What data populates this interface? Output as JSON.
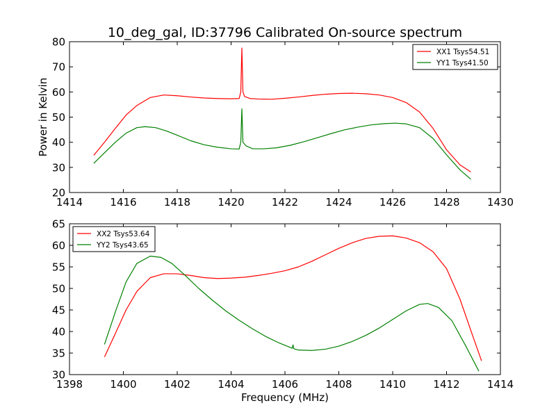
{
  "title": "10_deg_gal, ID:37796 Calibrated On-source spectrum",
  "chart_data": [
    {
      "type": "line",
      "title": "10_deg_gal, ID:37796 Calibrated On-source spectrum",
      "xlabel": "",
      "ylabel": "Power in Kelvin",
      "xlim": [
        1414,
        1430
      ],
      "ylim": [
        20,
        80
      ],
      "xticks": [
        1414,
        1416,
        1418,
        1420,
        1422,
        1424,
        1426,
        1428,
        1430
      ],
      "yticks": [
        20,
        30,
        40,
        50,
        60,
        70,
        80
      ],
      "legend_position": "top-right",
      "grid": false,
      "series": [
        {
          "name": "XX1 Tsys54.51",
          "color": "#ff0000",
          "points": [
            [
              1414.9,
              34.8
            ],
            [
              1415.3,
              40.0
            ],
            [
              1415.7,
              45.5
            ],
            [
              1416.1,
              50.8
            ],
            [
              1416.5,
              54.6
            ],
            [
              1417.0,
              57.8
            ],
            [
              1417.5,
              58.8
            ],
            [
              1418.0,
              58.5
            ],
            [
              1418.5,
              58.0
            ],
            [
              1419.0,
              57.6
            ],
            [
              1419.5,
              57.4
            ],
            [
              1420.0,
              57.3
            ],
            [
              1420.3,
              57.4
            ],
            [
              1420.36,
              60.0
            ],
            [
              1420.4,
              77.5
            ],
            [
              1420.44,
              60.0
            ],
            [
              1420.5,
              58.2
            ],
            [
              1420.7,
              57.4
            ],
            [
              1421.0,
              57.2
            ],
            [
              1421.5,
              57.1
            ],
            [
              1422.0,
              57.5
            ],
            [
              1422.5,
              58.0
            ],
            [
              1423.0,
              58.6
            ],
            [
              1423.5,
              59.1
            ],
            [
              1424.0,
              59.4
            ],
            [
              1424.5,
              59.5
            ],
            [
              1425.0,
              59.3
            ],
            [
              1425.5,
              58.8
            ],
            [
              1426.0,
              57.8
            ],
            [
              1426.5,
              55.8
            ],
            [
              1427.0,
              52.0
            ],
            [
              1427.5,
              45.5
            ],
            [
              1428.0,
              37.0
            ],
            [
              1428.5,
              31.0
            ],
            [
              1428.9,
              28.2
            ]
          ]
        },
        {
          "name": "YY1 Tsys41.50",
          "color": "#008000",
          "points": [
            [
              1414.9,
              31.6
            ],
            [
              1415.3,
              35.8
            ],
            [
              1415.7,
              40.0
            ],
            [
              1416.1,
              43.6
            ],
            [
              1416.5,
              45.8
            ],
            [
              1416.8,
              46.2
            ],
            [
              1417.2,
              45.8
            ],
            [
              1417.6,
              44.5
            ],
            [
              1418.0,
              42.8
            ],
            [
              1418.5,
              40.6
            ],
            [
              1419.0,
              39.0
            ],
            [
              1419.5,
              38.0
            ],
            [
              1420.0,
              37.4
            ],
            [
              1420.3,
              37.3
            ],
            [
              1420.36,
              40.0
            ],
            [
              1420.4,
              53.3
            ],
            [
              1420.44,
              40.0
            ],
            [
              1420.55,
              38.6
            ],
            [
              1420.8,
              37.4
            ],
            [
              1421.2,
              37.4
            ],
            [
              1421.7,
              37.8
            ],
            [
              1422.2,
              38.8
            ],
            [
              1422.7,
              40.2
            ],
            [
              1423.2,
              41.8
            ],
            [
              1423.7,
              43.4
            ],
            [
              1424.2,
              44.9
            ],
            [
              1424.7,
              46.0
            ],
            [
              1425.2,
              46.9
            ],
            [
              1425.7,
              47.4
            ],
            [
              1426.1,
              47.6
            ],
            [
              1426.5,
              47.3
            ],
            [
              1427.0,
              45.8
            ],
            [
              1427.5,
              41.5
            ],
            [
              1428.0,
              35.0
            ],
            [
              1428.5,
              29.0
            ],
            [
              1428.9,
              25.3
            ]
          ]
        }
      ]
    },
    {
      "type": "line",
      "title": "",
      "xlabel": "Frequency (MHz)",
      "ylabel": "",
      "xlim": [
        1398,
        1414
      ],
      "ylim": [
        30,
        65
      ],
      "xticks": [
        1398,
        1400,
        1402,
        1404,
        1406,
        1408,
        1410,
        1412,
        1414
      ],
      "yticks": [
        30,
        35,
        40,
        45,
        50,
        55,
        60,
        65
      ],
      "legend_position": "top-left",
      "grid": false,
      "series": [
        {
          "name": "XX2 Tsys53.64",
          "color": "#ff0000",
          "points": [
            [
              1399.3,
              34.1
            ],
            [
              1399.7,
              39.5
            ],
            [
              1400.1,
              45.0
            ],
            [
              1400.5,
              49.3
            ],
            [
              1401.0,
              52.5
            ],
            [
              1401.5,
              53.4
            ],
            [
              1402.0,
              53.4
            ],
            [
              1402.5,
              53.0
            ],
            [
              1403.0,
              52.5
            ],
            [
              1403.5,
              52.3
            ],
            [
              1404.0,
              52.4
            ],
            [
              1404.5,
              52.6
            ],
            [
              1405.0,
              53.0
            ],
            [
              1405.5,
              53.5
            ],
            [
              1406.0,
              54.1
            ],
            [
              1406.5,
              55.0
            ],
            [
              1407.0,
              56.3
            ],
            [
              1407.5,
              57.8
            ],
            [
              1408.0,
              59.3
            ],
            [
              1408.5,
              60.6
            ],
            [
              1409.0,
              61.6
            ],
            [
              1409.5,
              62.1
            ],
            [
              1410.0,
              62.2
            ],
            [
              1410.5,
              61.7
            ],
            [
              1411.0,
              60.6
            ],
            [
              1411.5,
              58.5
            ],
            [
              1412.0,
              54.6
            ],
            [
              1412.5,
              47.5
            ],
            [
              1413.0,
              38.5
            ],
            [
              1413.3,
              33.2
            ]
          ]
        },
        {
          "name": "YY2 Tsys43.65",
          "color": "#008000",
          "points": [
            [
              1399.3,
              37.0
            ],
            [
              1399.7,
              44.5
            ],
            [
              1400.1,
              51.5
            ],
            [
              1400.5,
              55.8
            ],
            [
              1401.0,
              57.5
            ],
            [
              1401.4,
              57.2
            ],
            [
              1401.8,
              55.8
            ],
            [
              1402.3,
              53.0
            ],
            [
              1402.8,
              50.0
            ],
            [
              1403.3,
              47.3
            ],
            [
              1403.8,
              44.8
            ],
            [
              1404.3,
              42.6
            ],
            [
              1404.8,
              40.6
            ],
            [
              1405.3,
              38.8
            ],
            [
              1405.8,
              37.3
            ],
            [
              1406.2,
              36.3
            ],
            [
              1406.27,
              36.1
            ],
            [
              1406.3,
              36.9
            ],
            [
              1406.33,
              36.0
            ],
            [
              1406.5,
              35.7
            ],
            [
              1407.0,
              35.6
            ],
            [
              1407.5,
              35.9
            ],
            [
              1408.0,
              36.6
            ],
            [
              1408.5,
              37.7
            ],
            [
              1409.0,
              39.1
            ],
            [
              1409.5,
              40.8
            ],
            [
              1410.0,
              42.8
            ],
            [
              1410.5,
              44.8
            ],
            [
              1411.0,
              46.3
            ],
            [
              1411.3,
              46.5
            ],
            [
              1411.7,
              45.6
            ],
            [
              1412.2,
              42.5
            ],
            [
              1412.7,
              36.8
            ],
            [
              1413.2,
              30.8
            ]
          ]
        }
      ]
    }
  ]
}
